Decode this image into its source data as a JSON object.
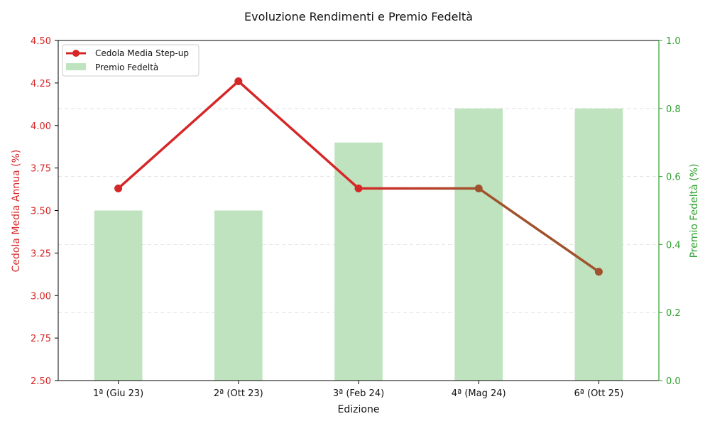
{
  "chart_data": {
    "type": "bar",
    "title": "Evoluzione Rendimenti e Premio Fedeltà",
    "xlabel": "Edizione",
    "ylabel_left": "Cedola Media Annua (%)",
    "ylabel_right": "Premio Fedeltà (%)",
    "categories": [
      "1ª (Giu 23)",
      "2ª (Ott 23)",
      "3ª (Feb 24)",
      "4ª (Mag 24)",
      "6ª (Ott 25)"
    ],
    "ylim_left": [
      2.5,
      4.5
    ],
    "yticks_left": [
      "2.50",
      "2.75",
      "3.00",
      "3.25",
      "3.50",
      "3.75",
      "4.00",
      "4.25",
      "4.50"
    ],
    "ylim_right": [
      0.0,
      1.0
    ],
    "yticks_right": [
      "0.0",
      "0.2",
      "0.4",
      "0.6",
      "0.8",
      "1.0"
    ],
    "grid": true,
    "legend_position": "top-left",
    "series": [
      {
        "name": "Cedola Media Step-up",
        "type": "line",
        "axis": "left",
        "values": [
          3.63,
          4.26,
          3.63,
          3.63,
          3.14
        ]
      },
      {
        "name": "Premio Fedeltà",
        "type": "bar",
        "axis": "right",
        "values": [
          0.5,
          0.5,
          0.7,
          0.8,
          0.8
        ]
      }
    ],
    "colors": {
      "line": "#d62728",
      "line_alt": "#a0522d",
      "bar": "#bfe3bf",
      "left_axis": "#d62728",
      "right_axis": "#2ca02c",
      "grid": "#dddddd"
    }
  }
}
